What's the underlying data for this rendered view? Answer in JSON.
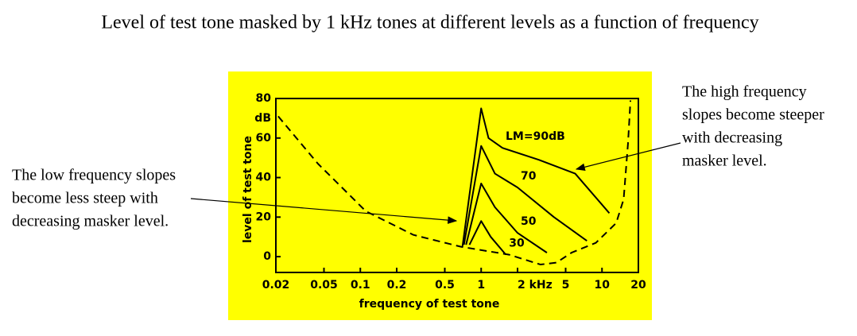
{
  "chart_data": {
    "type": "line",
    "title": "Level of test tone masked by 1 kHz tones at different levels as a function of frequency",
    "x_label": "frequency of test tone",
    "y_label": "level of test tone",
    "y_unit": "dB",
    "xscale": "log",
    "xlim": [
      0.02,
      20
    ],
    "ylim": [
      -8,
      80
    ],
    "xticks": [
      0.02,
      0.05,
      0.1,
      0.2,
      0.5,
      1,
      {
        "value": 2,
        "label": "2 kHz"
      },
      5,
      10,
      20
    ],
    "yticks": [
      0,
      20,
      40,
      60,
      80
    ],
    "background": "#ffff00",
    "series": [
      {
        "name": "LM=90dB",
        "color": "#000000",
        "x": [
          0.7,
          1,
          1.15,
          1.5,
          3,
          6,
          11.5
        ],
        "values": [
          5,
          75,
          60,
          55,
          49,
          42,
          22
        ]
      },
      {
        "name": "70",
        "color": "#000000",
        "x": [
          0.72,
          1,
          1.3,
          2,
          4,
          7.5
        ],
        "values": [
          6,
          56,
          42,
          35,
          20,
          8
        ]
      },
      {
        "name": "50",
        "color": "#000000",
        "x": [
          0.75,
          1,
          1.3,
          2,
          3.5
        ],
        "values": [
          6,
          37,
          25,
          12,
          2
        ]
      },
      {
        "name": "30",
        "color": "#000000",
        "x": [
          0.8,
          1,
          1.2,
          1.6
        ],
        "values": [
          6,
          18,
          10,
          1
        ]
      },
      {
        "color": "#000000",
        "dashed": true,
        "x": [
          0.0209,
          0.0446,
          0.111,
          0.275,
          0.68,
          1.7,
          3.1,
          4.2,
          5.6,
          8.9,
          13.1,
          15.1,
          16.4,
          17.2
        ],
        "values": [
          71,
          47,
          23,
          11,
          5,
          1,
          -4,
          -3,
          2,
          7,
          17,
          29,
          57,
          79
        ]
      }
    ],
    "annotations": [
      {
        "lines": [
          "The low frequency slopes",
          "become less steep with",
          "decreasing masker level."
        ]
      },
      {
        "lines": [
          "The high frequency",
          "slopes become steeper",
          "with decreasing",
          "masker level."
        ]
      }
    ]
  }
}
